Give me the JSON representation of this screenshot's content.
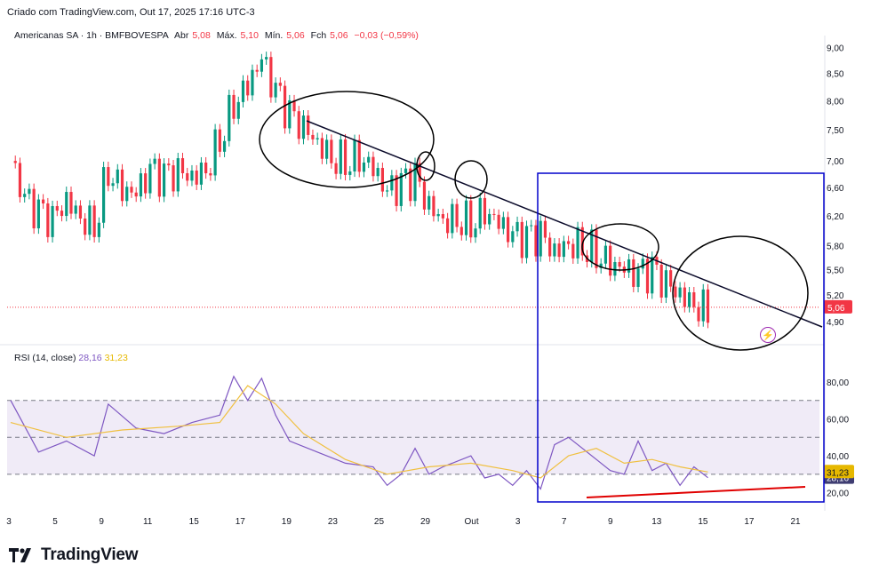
{
  "header": {
    "caption": "Criado com TradingView.com, Out 17, 2025 17:16 UTC-3",
    "symbol": "Americanas SA · 1h · BMFBOVESPA",
    "open_label": "Abr",
    "open_value": "5,08",
    "high_label": "Máx.",
    "high_value": "5,10",
    "low_label": "Mín.",
    "low_value": "5,06",
    "close_label": "Fch",
    "close_value": "5,06",
    "change": "−0,03 (−0,59%)"
  },
  "rsi_legend": {
    "label": "RSI (14, close)",
    "rsi_value": "28,16",
    "ma_value": "31,23"
  },
  "brand": {
    "name": "TradingView"
  },
  "colors": {
    "up": "#089981",
    "down": "#f23645",
    "rsi": "#7e57c2",
    "rsi_ma": "#f0c040",
    "band": "#ede7f6",
    "box": "#0000cc",
    "trendline": "#0a0a2a",
    "support": "#e00000"
  },
  "chart_data": [
    {
      "type": "candlestick",
      "title": "Americanas SA · 1h · BMFBOVESPA",
      "x_tick_labels": [
        "3",
        "5",
        "9",
        "11",
        "15",
        "17",
        "19",
        "23",
        "25",
        "29",
        "Out",
        "3",
        "7",
        "9",
        "13",
        "15",
        "17",
        "21"
      ],
      "y_tick_labels": [
        "9,00",
        "8,50",
        "8,00",
        "7,50",
        "7,00",
        "6,60",
        "6,20",
        "5,80",
        "5,50",
        "5,20",
        "4,90"
      ],
      "ylim": [
        4.75,
        9.1
      ],
      "y_scale": "log",
      "last_price": "5,06",
      "close_path": [
        {
          "x": 0,
          "y": 7.0
        },
        {
          "x": 1,
          "y": 6.4
        },
        {
          "x": 2,
          "y": 6.2
        },
        {
          "x": 3,
          "y": 6.1
        },
        {
          "x": 4,
          "y": 6.4
        },
        {
          "x": 5,
          "y": 6.2
        },
        {
          "x": 6,
          "y": 6.1
        },
        {
          "x": 7,
          "y": 6.9
        },
        {
          "x": 8,
          "y": 6.6
        },
        {
          "x": 9,
          "y": 6.5
        },
        {
          "x": 10,
          "y": 6.8
        },
        {
          "x": 11,
          "y": 6.7
        },
        {
          "x": 12,
          "y": 6.8
        },
        {
          "x": 13,
          "y": 6.75
        },
        {
          "x": 14,
          "y": 6.9
        },
        {
          "x": 15,
          "y": 7.4
        },
        {
          "x": 16,
          "y": 8.0
        },
        {
          "x": 17,
          "y": 8.3
        },
        {
          "x": 18,
          "y": 8.75
        },
        {
          "x": 19,
          "y": 8.1
        },
        {
          "x": 20,
          "y": 7.7
        },
        {
          "x": 21,
          "y": 7.5
        },
        {
          "x": 22,
          "y": 7.3
        },
        {
          "x": 23,
          "y": 7.1
        },
        {
          "x": 24,
          "y": 7.05
        },
        {
          "x": 25,
          "y": 7.1
        },
        {
          "x": 26,
          "y": 6.9
        },
        {
          "x": 27,
          "y": 6.5
        },
        {
          "x": 28,
          "y": 6.6
        },
        {
          "x": 29,
          "y": 6.7
        },
        {
          "x": 30,
          "y": 6.3
        },
        {
          "x": 31,
          "y": 6.15
        },
        {
          "x": 32,
          "y": 6.2
        },
        {
          "x": 33,
          "y": 6.15
        },
        {
          "x": 34,
          "y": 6.3
        },
        {
          "x": 35,
          "y": 6.1
        },
        {
          "x": 36,
          "y": 5.9
        },
        {
          "x": 37,
          "y": 5.85
        },
        {
          "x": 38,
          "y": 5.9
        },
        {
          "x": 39,
          "y": 5.7
        },
        {
          "x": 40,
          "y": 5.85
        },
        {
          "x": 41,
          "y": 5.85
        },
        {
          "x": 42,
          "y": 5.75
        },
        {
          "x": 43,
          "y": 5.6
        },
        {
          "x": 44,
          "y": 5.5
        },
        {
          "x": 45,
          "y": 5.4
        },
        {
          "x": 46,
          "y": 5.45
        },
        {
          "x": 47,
          "y": 5.3
        },
        {
          "x": 48,
          "y": 5.2
        },
        {
          "x": 49,
          "y": 5.12
        },
        {
          "x": 50,
          "y": 5.06
        }
      ],
      "annotations": [
        "descending trendline",
        "ellipses around touch points",
        "blue rectangle highlight"
      ]
    },
    {
      "type": "line",
      "title": "RSI (14, close)",
      "y_tick_labels": [
        "80,00",
        "60,00",
        "40,00",
        "20,00"
      ],
      "ylim": [
        15,
        92
      ],
      "levels": [
        70,
        50,
        30
      ],
      "series": [
        {
          "name": "RSI",
          "last": "28,16",
          "values": [
            {
              "x": 0,
              "y": 70
            },
            {
              "x": 2,
              "y": 42
            },
            {
              "x": 4,
              "y": 48
            },
            {
              "x": 6,
              "y": 40
            },
            {
              "x": 7,
              "y": 68
            },
            {
              "x": 9,
              "y": 55
            },
            {
              "x": 11,
              "y": 52
            },
            {
              "x": 13,
              "y": 58
            },
            {
              "x": 15,
              "y": 62
            },
            {
              "x": 16,
              "y": 83
            },
            {
              "x": 17,
              "y": 70
            },
            {
              "x": 18,
              "y": 82
            },
            {
              "x": 19,
              "y": 62
            },
            {
              "x": 20,
              "y": 48
            },
            {
              "x": 22,
              "y": 42
            },
            {
              "x": 24,
              "y": 36
            },
            {
              "x": 26,
              "y": 34
            },
            {
              "x": 27,
              "y": 24
            },
            {
              "x": 28,
              "y": 30
            },
            {
              "x": 29,
              "y": 44
            },
            {
              "x": 30,
              "y": 30
            },
            {
              "x": 31,
              "y": 34
            },
            {
              "x": 33,
              "y": 40
            },
            {
              "x": 34,
              "y": 28
            },
            {
              "x": 35,
              "y": 30
            },
            {
              "x": 36,
              "y": 24
            },
            {
              "x": 37,
              "y": 32
            },
            {
              "x": 38,
              "y": 22
            },
            {
              "x": 39,
              "y": 46
            },
            {
              "x": 40,
              "y": 50
            },
            {
              "x": 41,
              "y": 44
            },
            {
              "x": 42,
              "y": 38
            },
            {
              "x": 43,
              "y": 32
            },
            {
              "x": 44,
              "y": 30
            },
            {
              "x": 45,
              "y": 48
            },
            {
              "x": 46,
              "y": 32
            },
            {
              "x": 47,
              "y": 36
            },
            {
              "x": 48,
              "y": 24
            },
            {
              "x": 49,
              "y": 34
            },
            {
              "x": 50,
              "y": 28.16
            }
          ]
        },
        {
          "name": "RSI MA",
          "last": "31,23",
          "values": [
            {
              "x": 0,
              "y": 58
            },
            {
              "x": 4,
              "y": 50
            },
            {
              "x": 8,
              "y": 54
            },
            {
              "x": 12,
              "y": 56
            },
            {
              "x": 15,
              "y": 58
            },
            {
              "x": 17,
              "y": 78
            },
            {
              "x": 19,
              "y": 68
            },
            {
              "x": 21,
              "y": 52
            },
            {
              "x": 24,
              "y": 38
            },
            {
              "x": 27,
              "y": 30
            },
            {
              "x": 30,
              "y": 34
            },
            {
              "x": 33,
              "y": 36
            },
            {
              "x": 36,
              "y": 32
            },
            {
              "x": 38,
              "y": 28
            },
            {
              "x": 40,
              "y": 40
            },
            {
              "x": 42,
              "y": 44
            },
            {
              "x": 44,
              "y": 36
            },
            {
              "x": 46,
              "y": 38
            },
            {
              "x": 48,
              "y": 34
            },
            {
              "x": 50,
              "y": 31.23
            }
          ]
        }
      ]
    }
  ]
}
